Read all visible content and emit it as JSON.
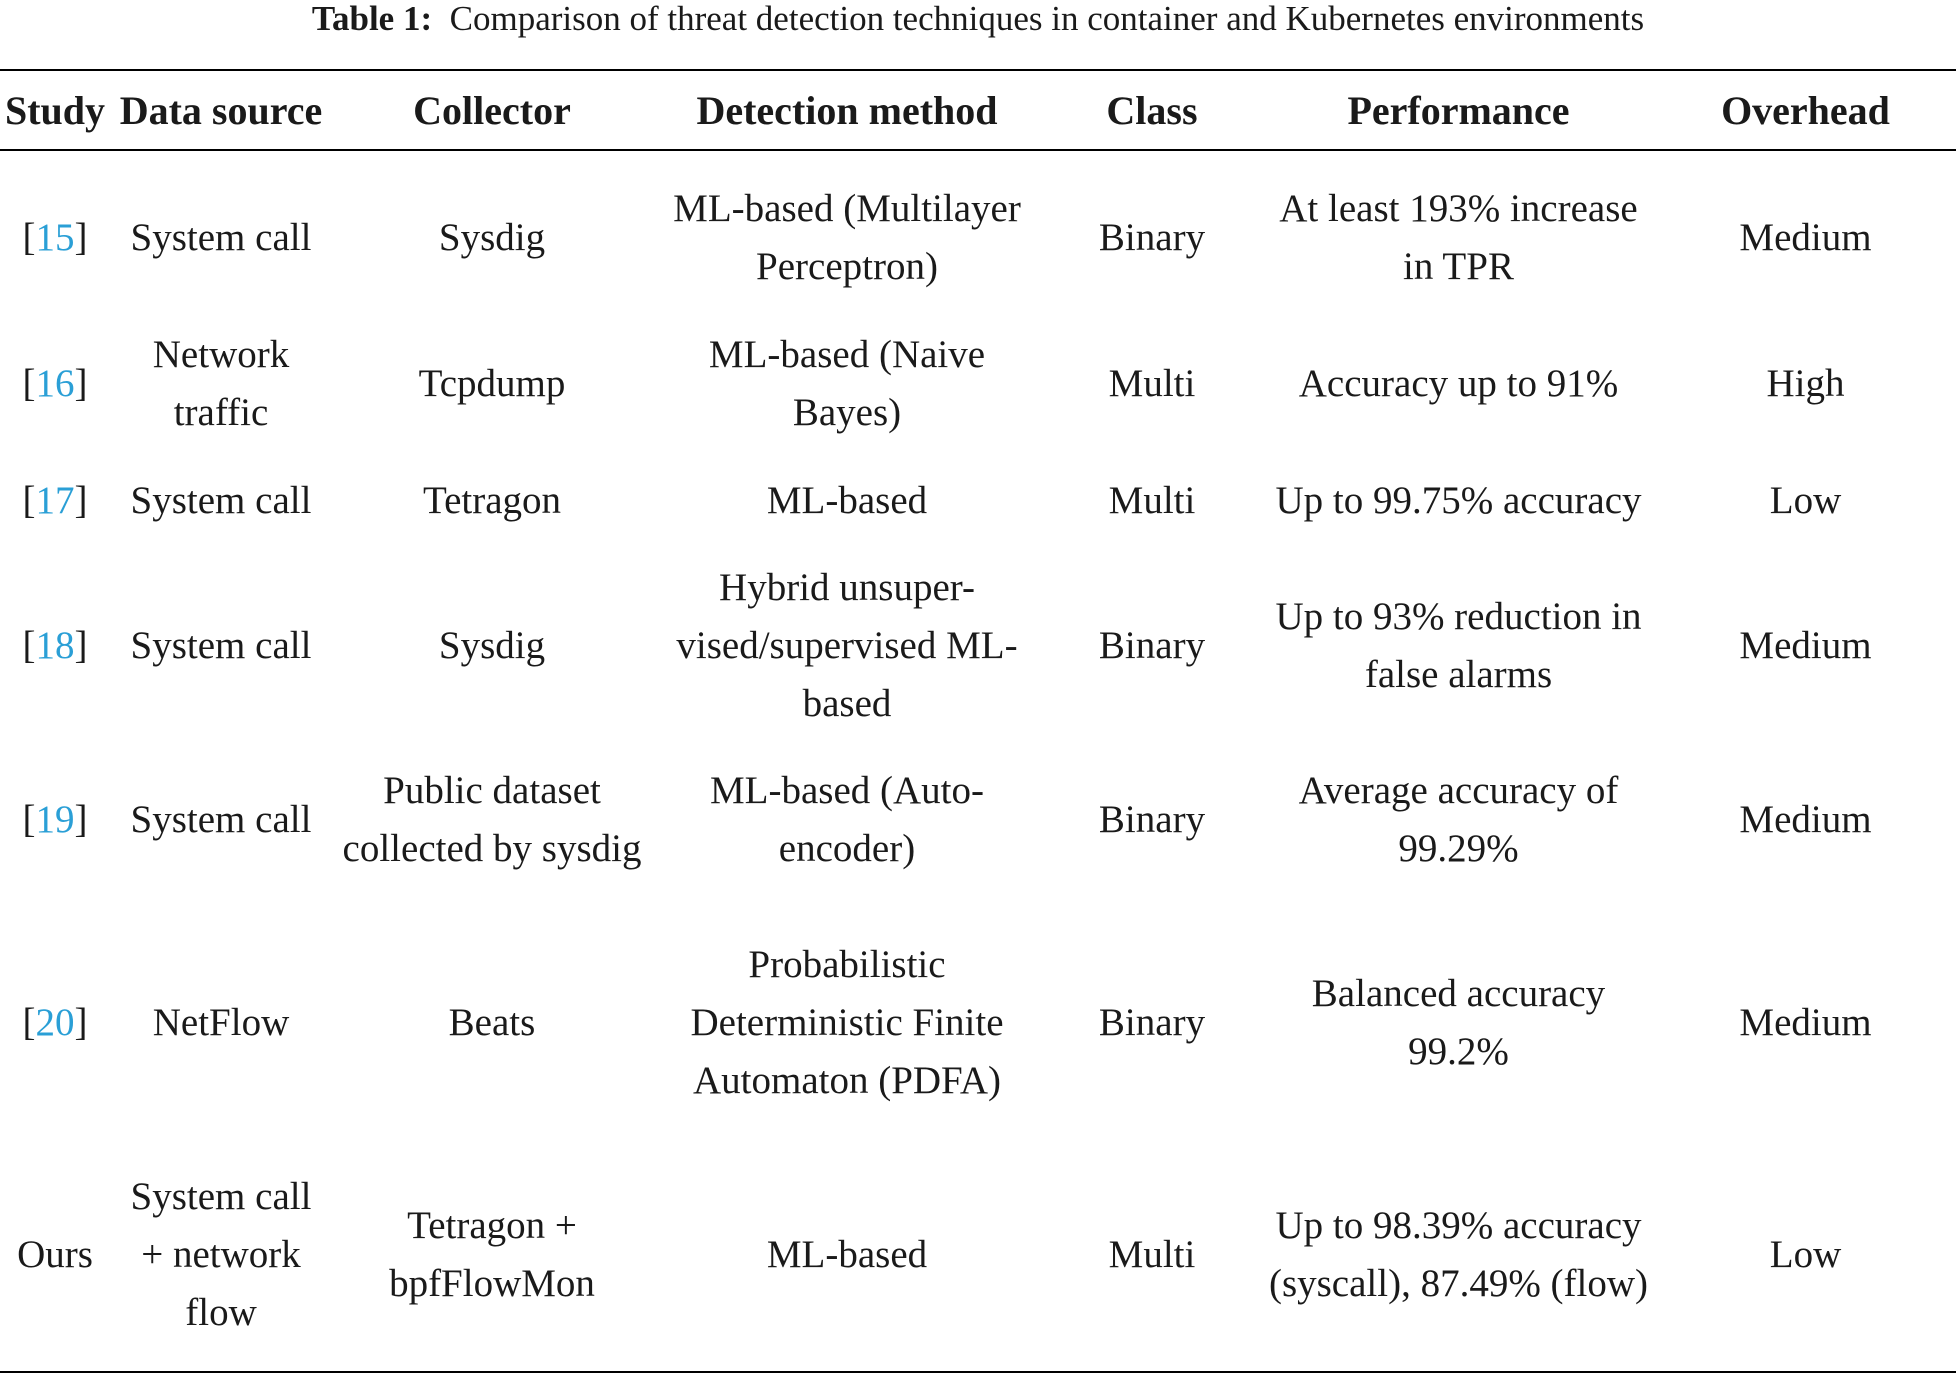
{
  "caption": {
    "label": "Table 1:",
    "text": "Comparison of threat detection techniques in container and Kubernetes environments"
  },
  "table": {
    "headers": [
      "Study",
      "Data source",
      "Collector",
      "Detection method",
      "Class",
      "Performance",
      "Overhead"
    ],
    "rows": [
      {
        "study_ref": "15",
        "data_source": "System call",
        "collector": "Sysdig",
        "detection_method": "ML-based (Multilayer Perceptron)",
        "class": "Binary",
        "performance": "At least 193% increase in TPR",
        "overhead": "Medium"
      },
      {
        "study_ref": "16",
        "data_source": "Network traffic",
        "collector": "Tcpdump",
        "detection_method": "ML-based (Naive Bayes)",
        "class": "Multi",
        "performance": "Accuracy up to 91%",
        "overhead": "High"
      },
      {
        "study_ref": "17",
        "data_source": "System call",
        "collector": "Tetragon",
        "detection_method": "ML-based",
        "class": "Multi",
        "performance": "Up to 99.75% accuracy",
        "overhead": "Low"
      },
      {
        "study_ref": "18",
        "data_source": "System call",
        "collector": "Sysdig",
        "detection_method": "Hybrid unsuper-vised/supervised ML-based",
        "class": "Binary",
        "performance": "Up to 93% reduction in false alarms",
        "overhead": "Medium"
      },
      {
        "study_ref": "19",
        "data_source": "System call",
        "collector": "Public dataset collected by sysdig",
        "detection_method": "ML-based (Auto-encoder)",
        "class": "Binary",
        "performance": "Average accuracy of 99.29%",
        "overhead": "Medium"
      },
      {
        "study_ref": "20",
        "data_source": "NetFlow",
        "collector": "Beats",
        "detection_method": "Probabilistic Deterministic Finite Automaton (PDFA)",
        "class": "Binary",
        "performance": "Balanced accuracy 99.2%",
        "overhead": "Medium"
      },
      {
        "study": "Ours",
        "data_source": "System call + network flow",
        "collector": "Tetragon + bpfFlowMon",
        "detection_method": "ML-based",
        "class": "Multi",
        "performance": "Up to 98.39% accuracy (syscall), 87.49% (flow)",
        "overhead": "Low"
      }
    ]
  },
  "colors": {
    "reference_link": "#2a9fd6",
    "text": "#1a1a1a",
    "rule": "#000000"
  }
}
